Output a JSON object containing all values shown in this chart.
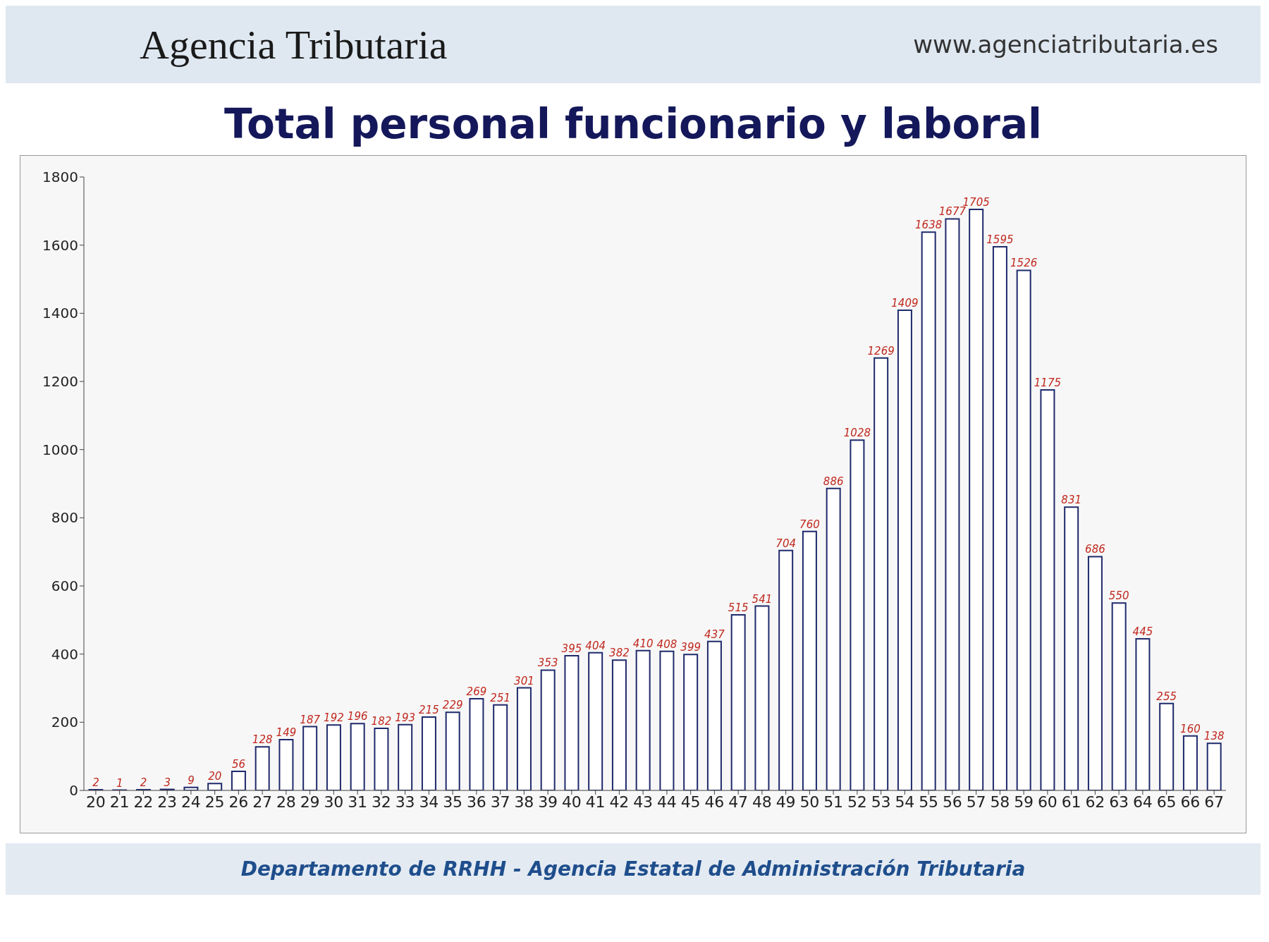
{
  "chart_data": {
    "type": "bar",
    "title": "Total personal funcionario y  laboral",
    "annotations": [
      "Agencia Tributaria",
      "www.agenciatributaria.es",
      "Departamento de RRHH - Agencia Estatal de Administración Tributaria"
    ],
    "categories": [
      "20",
      "21",
      "22",
      "23",
      "24",
      "25",
      "26",
      "27",
      "28",
      "29",
      "30",
      "31",
      "32",
      "33",
      "34",
      "35",
      "36",
      "37",
      "38",
      "39",
      "40",
      "41",
      "42",
      "43",
      "44",
      "45",
      "46",
      "47",
      "48",
      "49",
      "50",
      "51",
      "52",
      "53",
      "54",
      "55",
      "56",
      "57",
      "58",
      "59",
      "60",
      "61",
      "62",
      "63",
      "64",
      "65",
      "66",
      "67"
    ],
    "values": [
      2,
      1,
      2,
      3,
      9,
      20,
      56,
      128,
      149,
      187,
      192,
      196,
      182,
      193,
      215,
      229,
      269,
      251,
      301,
      353,
      395,
      404,
      382,
      410,
      408,
      399,
      437,
      515,
      541,
      704,
      760,
      886,
      1028,
      1269,
      1409,
      1638,
      1677,
      1705,
      1595,
      1526,
      1175,
      831,
      686,
      550,
      445,
      255,
      160,
      138
    ],
    "color": "#ffffff",
    "ylim": [
      0,
      1800
    ],
    "yticks": [
      0,
      200,
      400,
      600,
      800,
      1000,
      1200,
      1400,
      1600,
      1800
    ],
    "grid": false,
    "data_labels": true
  }
}
